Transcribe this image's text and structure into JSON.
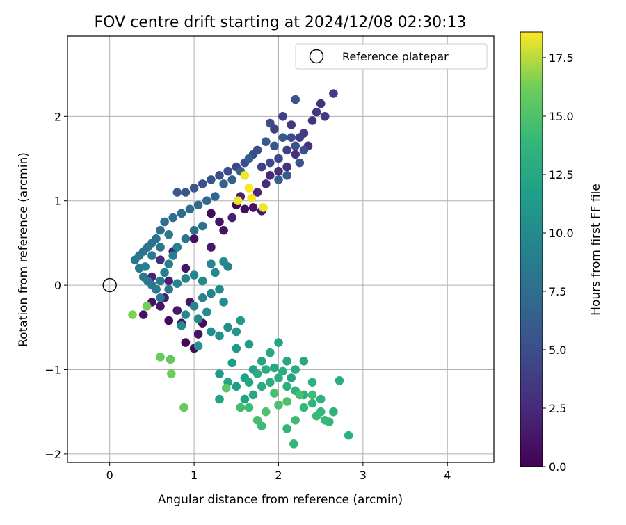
{
  "chart_data": {
    "type": "scatter",
    "title": "FOV centre drift starting at 2024/12/08 02:30:13",
    "xlabel": "Angular distance from reference (arcmin)",
    "ylabel": "Rotation from reference (arcmin)",
    "xlim": [
      -0.5,
      4.55
    ],
    "ylim": [
      -2.1,
      2.95
    ],
    "x_ticks": [
      0,
      1,
      2,
      3,
      4
    ],
    "x_tick_labels": [
      "0",
      "1",
      "2",
      "3",
      "4"
    ],
    "y_ticks": [
      -2,
      -1,
      0,
      1,
      2
    ],
    "y_tick_labels": [
      "−2",
      "−1",
      "0",
      "1",
      "2"
    ],
    "grid": true,
    "colormap": "viridis",
    "colorbar": {
      "label": "Hours from first FF file",
      "range": [
        0.0,
        18.6
      ],
      "ticks": [
        0.0,
        2.5,
        5.0,
        7.5,
        10.0,
        12.5,
        15.0,
        17.5
      ],
      "tick_labels": [
        "0.0",
        "2.5",
        "5.0",
        "7.5",
        "10.0",
        "12.5",
        "15.0",
        "17.5"
      ]
    },
    "legend": {
      "position": "top-right",
      "entries": [
        "Reference platepar"
      ]
    },
    "reference_point": {
      "x": 0.0,
      "y": 0.0
    },
    "point_columns": [
      "x",
      "y",
      "hours"
    ],
    "points": [
      [
        0.4,
        -0.35,
        1.0
      ],
      [
        0.5,
        -0.2,
        0.8
      ],
      [
        0.6,
        -0.25,
        1.2
      ],
      [
        0.7,
        -0.42,
        0.5
      ],
      [
        0.8,
        -0.3,
        1.5
      ],
      [
        0.9,
        -0.68,
        0.4
      ],
      [
        1.0,
        -0.75,
        0.6
      ],
      [
        1.05,
        -0.58,
        1.0
      ],
      [
        0.65,
        -0.15,
        1.8
      ],
      [
        0.85,
        -0.45,
        0.9
      ],
      [
        0.95,
        -0.2,
        1.3
      ],
      [
        1.1,
        -0.45,
        0.7
      ],
      [
        0.55,
        -0.05,
        1.6
      ],
      [
        0.7,
        0.05,
        2.0
      ],
      [
        0.9,
        0.2,
        1.1
      ],
      [
        1.0,
        0.55,
        0.8
      ],
      [
        1.2,
        0.85,
        0.6
      ],
      [
        1.3,
        0.75,
        1.2
      ],
      [
        1.35,
        0.65,
        1.0
      ],
      [
        1.5,
        0.95,
        0.5
      ],
      [
        1.6,
        0.9,
        0.7
      ],
      [
        1.2,
        0.45,
        1.4
      ],
      [
        0.5,
        0.1,
        2.2
      ],
      [
        0.6,
        0.3,
        2.5
      ],
      [
        0.75,
        0.4,
        1.9
      ],
      [
        1.45,
        0.8,
        1.7
      ],
      [
        1.7,
        0.92,
        1.1
      ],
      [
        1.8,
        0.88,
        1.3
      ],
      [
        1.55,
        1.05,
        2.0
      ],
      [
        1.75,
        1.1,
        2.2
      ],
      [
        1.85,
        1.2,
        2.6
      ],
      [
        1.9,
        1.3,
        2.3
      ],
      [
        2.0,
        1.35,
        2.8
      ],
      [
        2.1,
        1.4,
        3.0
      ],
      [
        2.2,
        1.55,
        2.9
      ],
      [
        2.3,
        1.8,
        3.5
      ],
      [
        2.4,
        1.95,
        3.2
      ],
      [
        2.45,
        2.05,
        3.4
      ],
      [
        2.5,
        2.15,
        3.0
      ],
      [
        2.55,
        2.0,
        3.6
      ],
      [
        2.65,
        2.27,
        3.8
      ],
      [
        2.35,
        1.65,
        3.1
      ],
      [
        2.25,
        1.75,
        3.7
      ],
      [
        2.15,
        1.9,
        3.3
      ],
      [
        2.05,
        2.0,
        3.9
      ],
      [
        1.95,
        1.85,
        4.2
      ],
      [
        2.1,
        1.6,
        4.0
      ],
      [
        2.0,
        1.5,
        4.4
      ],
      [
        1.9,
        1.45,
        4.6
      ],
      [
        1.8,
        1.4,
        4.1
      ],
      [
        1.7,
        1.55,
        4.8
      ],
      [
        1.6,
        1.45,
        4.9
      ],
      [
        1.5,
        1.4,
        4.5
      ],
      [
        1.4,
        1.35,
        5.2
      ],
      [
        1.3,
        1.3,
        5.0
      ],
      [
        1.2,
        1.25,
        5.5
      ],
      [
        1.1,
        1.2,
        5.3
      ],
      [
        1.0,
        1.15,
        5.8
      ],
      [
        0.9,
        1.1,
        5.6
      ],
      [
        0.8,
        1.1,
        6.0
      ],
      [
        2.3,
        1.6,
        5.1
      ],
      [
        2.2,
        1.65,
        5.4
      ],
      [
        2.15,
        1.75,
        4.7
      ],
      [
        2.05,
        1.75,
        5.9
      ],
      [
        1.95,
        1.65,
        5.7
      ],
      [
        1.85,
        1.7,
        6.1
      ],
      [
        1.75,
        1.6,
        5.0
      ],
      [
        1.65,
        1.5,
        6.3
      ],
      [
        1.55,
        1.35,
        6.5
      ],
      [
        1.45,
        1.25,
        6.2
      ],
      [
        2.2,
        2.2,
        5.5
      ],
      [
        1.9,
        1.92,
        5.0
      ],
      [
        2.0,
        1.25,
        6.4
      ],
      [
        2.1,
        1.3,
        6.0
      ],
      [
        2.25,
        1.45,
        5.6
      ],
      [
        1.35,
        1.2,
        6.7
      ],
      [
        1.25,
        1.05,
        6.9
      ],
      [
        1.15,
        1.0,
        7.1
      ],
      [
        1.05,
        0.95,
        7.0
      ],
      [
        0.95,
        0.9,
        7.3
      ],
      [
        0.85,
        0.85,
        7.2
      ],
      [
        0.75,
        0.8,
        7.4
      ],
      [
        0.65,
        0.75,
        7.6
      ],
      [
        0.6,
        0.65,
        7.5
      ],
      [
        0.55,
        0.55,
        7.8
      ],
      [
        0.5,
        0.5,
        7.7
      ],
      [
        0.45,
        0.45,
        7.9
      ],
      [
        0.4,
        0.4,
        8.0
      ],
      [
        0.35,
        0.35,
        8.1
      ],
      [
        0.3,
        0.3,
        8.2
      ],
      [
        0.35,
        0.2,
        8.3
      ],
      [
        0.4,
        0.1,
        8.4
      ],
      [
        0.45,
        0.05,
        8.5
      ],
      [
        0.5,
        0.0,
        8.6
      ],
      [
        0.55,
        -0.05,
        8.7
      ],
      [
        0.6,
        0.05,
        8.8
      ],
      [
        0.65,
        0.15,
        8.9
      ],
      [
        0.7,
        0.25,
        9.0
      ],
      [
        0.75,
        0.35,
        9.1
      ],
      [
        0.8,
        0.45,
        9.2
      ],
      [
        0.9,
        0.55,
        8.0
      ],
      [
        1.0,
        0.65,
        7.6
      ],
      [
        1.1,
        0.7,
        7.8
      ],
      [
        0.7,
        0.6,
        8.5
      ],
      [
        0.6,
        0.45,
        8.3
      ],
      [
        0.5,
        0.35,
        8.7
      ],
      [
        0.42,
        0.22,
        8.9
      ],
      [
        0.8,
        0.02,
        9.3
      ],
      [
        0.9,
        0.08,
        9.4
      ],
      [
        1.0,
        0.12,
        9.5
      ],
      [
        1.1,
        0.05,
        9.6
      ],
      [
        1.2,
        0.25,
        9.7
      ],
      [
        1.25,
        0.15,
        9.8
      ],
      [
        1.35,
        0.28,
        9.9
      ],
      [
        1.3,
        -0.05,
        10.0
      ],
      [
        1.2,
        -0.1,
        9.2
      ],
      [
        1.1,
        -0.15,
        9.4
      ],
      [
        1.0,
        -0.25,
        9.6
      ],
      [
        0.9,
        -0.35,
        9.8
      ],
      [
        0.85,
        -0.48,
        10.1
      ],
      [
        1.35,
        -0.2,
        10.2
      ],
      [
        1.4,
        -0.5,
        10.4
      ],
      [
        1.3,
        -0.6,
        10.6
      ],
      [
        1.2,
        -0.55,
        10.3
      ],
      [
        1.05,
        -0.72,
        10.8
      ],
      [
        1.4,
        0.22,
        9.1
      ],
      [
        0.6,
        -0.15,
        8.6
      ],
      [
        0.7,
        -0.05,
        8.2
      ],
      [
        1.05,
        -0.4,
        9.9
      ],
      [
        1.15,
        -0.32,
        10.0
      ],
      [
        1.5,
        -0.55,
        11.0
      ],
      [
        1.55,
        -0.42,
        11.2
      ],
      [
        1.65,
        -0.7,
        11.4
      ],
      [
        1.5,
        -0.75,
        11.1
      ],
      [
        1.3,
        -1.05,
        11.5
      ],
      [
        1.45,
        -0.92,
        11.6
      ],
      [
        1.6,
        -1.1,
        11.8
      ],
      [
        1.7,
        -1.0,
        12.0
      ],
      [
        1.8,
        -0.9,
        12.2
      ],
      [
        1.9,
        -0.8,
        12.4
      ],
      [
        2.0,
        -0.68,
        12.3
      ],
      [
        2.1,
        -0.9,
        12.6
      ],
      [
        2.2,
        -1.0,
        12.8
      ],
      [
        2.3,
        -0.9,
        12.5
      ],
      [
        1.5,
        -1.2,
        11.7
      ],
      [
        1.6,
        -1.35,
        12.1
      ],
      [
        1.7,
        -1.3,
        12.5
      ],
      [
        1.8,
        -1.2,
        12.7
      ],
      [
        1.9,
        -1.15,
        12.9
      ],
      [
        2.0,
        -1.1,
        13.0
      ],
      [
        2.1,
        -1.2,
        13.2
      ],
      [
        2.2,
        -1.25,
        13.4
      ],
      [
        2.3,
        -1.3,
        13.1
      ],
      [
        2.4,
        -1.15,
        13.3
      ],
      [
        1.75,
        -1.05,
        12.9
      ],
      [
        1.85,
        -1.0,
        13.0
      ],
      [
        1.95,
        -0.98,
        12.6
      ],
      [
        2.05,
        -1.02,
        12.8
      ],
      [
        1.65,
        -1.15,
        12.4
      ],
      [
        2.15,
        -1.1,
        12.2
      ],
      [
        2.4,
        -1.4,
        13.6
      ],
      [
        2.5,
        -1.5,
        13.8
      ],
      [
        2.55,
        -1.6,
        14.0
      ],
      [
        2.6,
        -1.62,
        13.9
      ],
      [
        2.65,
        -1.5,
        13.5
      ],
      [
        2.2,
        -1.6,
        14.2
      ],
      [
        2.3,
        -1.45,
        14.0
      ],
      [
        2.1,
        -1.7,
        13.7
      ],
      [
        2.18,
        -1.88,
        13.9
      ],
      [
        2.83,
        -1.78,
        13.2
      ],
      [
        2.72,
        -1.13,
        13.0
      ],
      [
        2.5,
        -1.35,
        13.4
      ],
      [
        2.45,
        -1.55,
        14.1
      ],
      [
        1.3,
        -1.35,
        12.0
      ],
      [
        1.4,
        -1.15,
        12.3
      ],
      [
        1.95,
        -1.28,
        14.8
      ],
      [
        2.0,
        -1.42,
        14.9
      ],
      [
        2.1,
        -1.38,
        15.0
      ],
      [
        2.25,
        -1.3,
        14.7
      ],
      [
        2.4,
        -1.3,
        14.5
      ],
      [
        1.85,
        -1.5,
        15.0
      ],
      [
        1.75,
        -1.6,
        14.6
      ],
      [
        1.65,
        -1.45,
        14.4
      ],
      [
        1.55,
        -1.45,
        14.5
      ],
      [
        1.8,
        -1.67,
        14.2
      ],
      [
        1.38,
        -1.22,
        15.5
      ],
      [
        0.6,
        -0.85,
        16.0
      ],
      [
        0.72,
        -0.88,
        15.8
      ],
      [
        0.73,
        -1.05,
        16.2
      ],
      [
        0.88,
        -1.45,
        16.0
      ],
      [
        0.27,
        -0.35,
        16.5
      ],
      [
        0.44,
        -0.25,
        16.3
      ],
      [
        1.6,
        1.3,
        18.4
      ],
      [
        1.65,
        1.15,
        18.6
      ],
      [
        1.68,
        1.03,
        18.5
      ],
      [
        1.52,
        1.0,
        18.3
      ],
      [
        1.82,
        0.92,
        18.4
      ]
    ]
  }
}
